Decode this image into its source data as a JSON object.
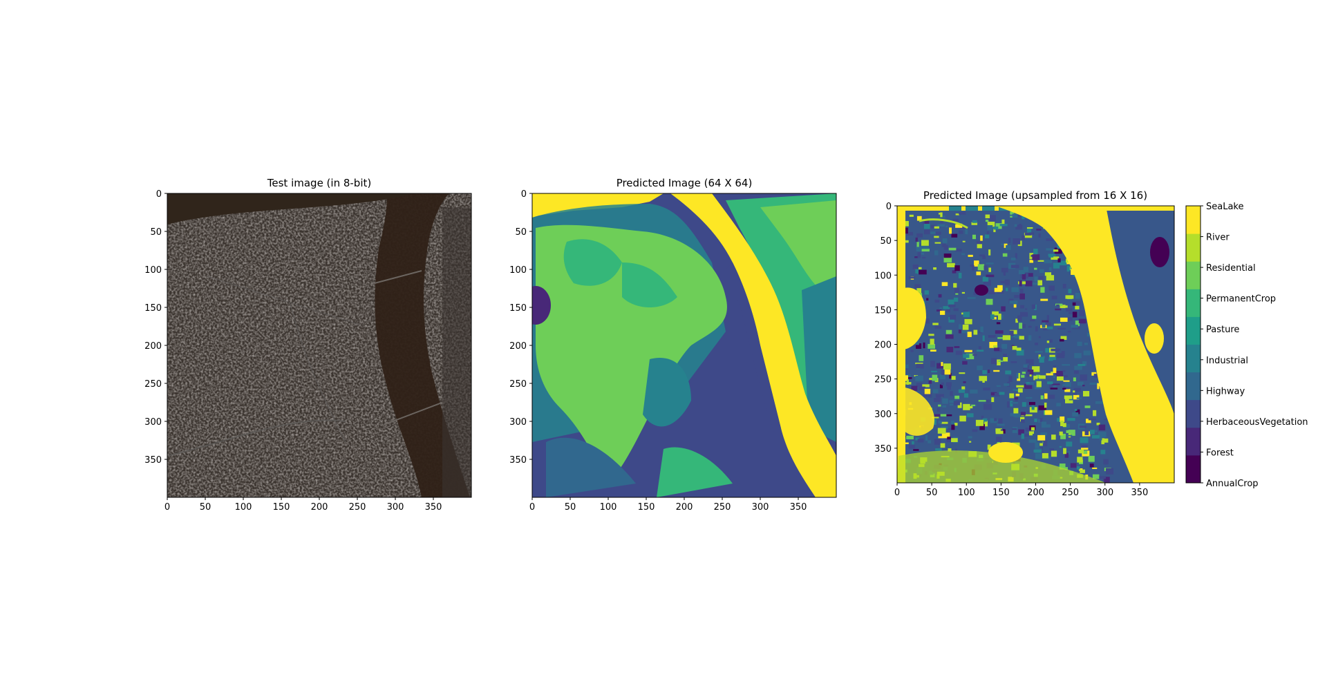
{
  "chart_data": [
    {
      "type": "heatmap",
      "title": "Test image (in 8-bit)",
      "xlim": [
        0,
        399
      ],
      "ylim": [
        399,
        0
      ],
      "xticks": [
        0,
        50,
        100,
        150,
        200,
        250,
        300,
        350
      ],
      "yticks": [
        0,
        50,
        100,
        150,
        200,
        250,
        300,
        350
      ],
      "content": "rgb satellite image"
    },
    {
      "type": "heatmap",
      "title": "Predicted Image (64 X 64)",
      "xlim": [
        0,
        399
      ],
      "ylim": [
        399,
        0
      ],
      "xticks": [
        0,
        50,
        100,
        150,
        200,
        250,
        300,
        350
      ],
      "yticks": [
        0,
        50,
        100,
        150,
        200,
        250,
        300,
        350
      ],
      "content": "class map"
    },
    {
      "type": "heatmap",
      "title": "Predicted Image (upsampled from 16 X 16)",
      "xlim": [
        0,
        399
      ],
      "ylim": [
        399,
        0
      ],
      "xticks": [
        0,
        50,
        100,
        150,
        200,
        250,
        300,
        350
      ],
      "yticks": [
        0,
        50,
        100,
        150,
        200,
        250,
        300,
        350
      ],
      "content": "class map",
      "colorbar": {
        "labels": [
          "AnnualCrop",
          "Forest",
          "HerbaceousVegetation",
          "Highway",
          "Industrial",
          "Pasture",
          "PermanentCrop",
          "Residential",
          "River",
          "SeaLake"
        ],
        "colors": [
          "#440154",
          "#482878",
          "#3e4989",
          "#31688e",
          "#26828e",
          "#1f9e89",
          "#35b779",
          "#6ece58",
          "#b5de2b",
          "#fde725"
        ]
      }
    }
  ]
}
